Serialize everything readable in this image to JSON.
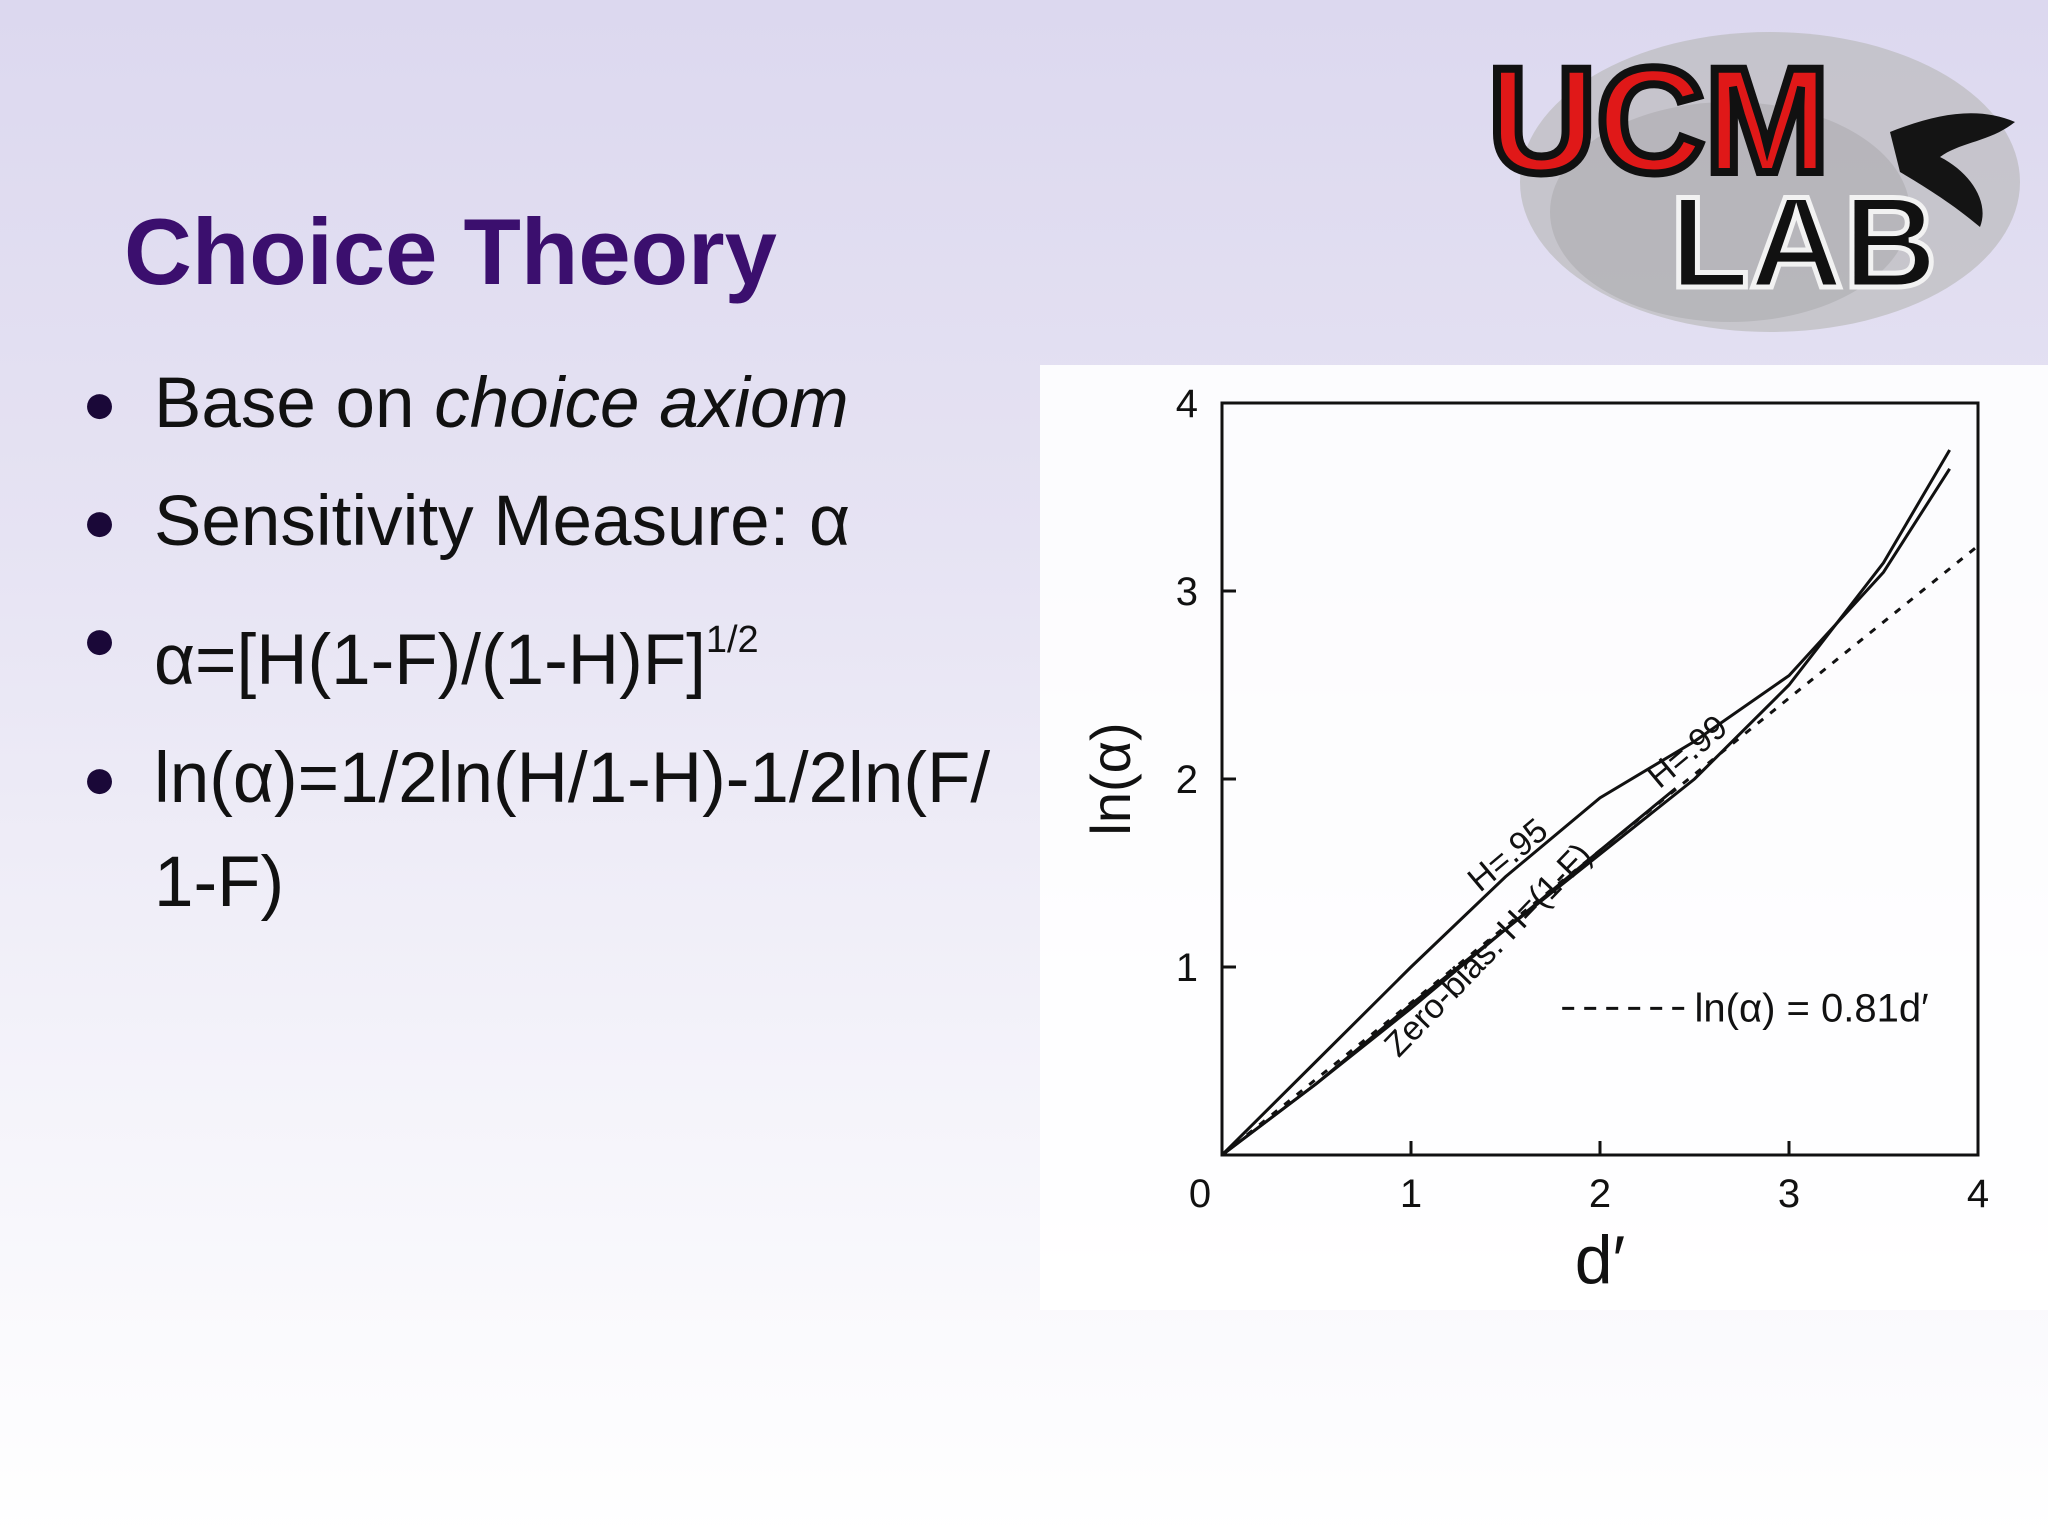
{
  "slide": {
    "title": "Choice Theory",
    "bullets": [
      {
        "prefix": "Base on ",
        "emphasis": "choice axiom"
      },
      {
        "text": "Sensitivity Measure: α"
      },
      {
        "text": "α=[H(1-F)/(1-H)F]",
        "superscript": "1/2"
      },
      {
        "text": "ln(α)=1/2ln(H/1-H)-1/2ln(F/ 1-F)"
      }
    ]
  },
  "logo": {
    "line1": "UCM",
    "line2": "LAB",
    "color": "#e01818"
  },
  "chart_data": {
    "type": "line",
    "xlabel": "d′",
    "ylabel": "ln(α)",
    "xlim": [
      0,
      4
    ],
    "ylim": [
      0,
      4
    ],
    "x_ticks": [
      "0",
      "1",
      "2",
      "3",
      "4"
    ],
    "y_ticks": [
      "1",
      "2",
      "3",
      "4"
    ],
    "grid": false,
    "legend": "lower-right",
    "legend_text": "ln(α) = 0.81d′",
    "series": [
      {
        "name": "H=.99",
        "x": [
          0,
          0.5,
          1,
          1.5,
          2,
          2.5,
          3,
          3.5,
          3.85
        ],
        "y": [
          0,
          0.38,
          0.8,
          1.2,
          1.6,
          2.0,
          2.5,
          3.15,
          3.75
        ]
      },
      {
        "name": "H=.95",
        "x": [
          0,
          0.5,
          1,
          1.5,
          2,
          2.5,
          3,
          3.5,
          3.85
        ],
        "y": [
          0,
          0.5,
          1.0,
          1.48,
          1.9,
          2.2,
          2.55,
          3.1,
          3.65
        ]
      },
      {
        "name": "Zero-bias: H=(1-F)",
        "x": [
          0,
          0.5,
          1,
          1.5,
          2,
          2.4
        ],
        "y": [
          0,
          0.38,
          0.78,
          1.2,
          1.62,
          1.95
        ]
      },
      {
        "name": "ln(α) = 0.81d′",
        "x": [
          0,
          4
        ],
        "y": [
          0,
          3.24
        ]
      }
    ]
  }
}
